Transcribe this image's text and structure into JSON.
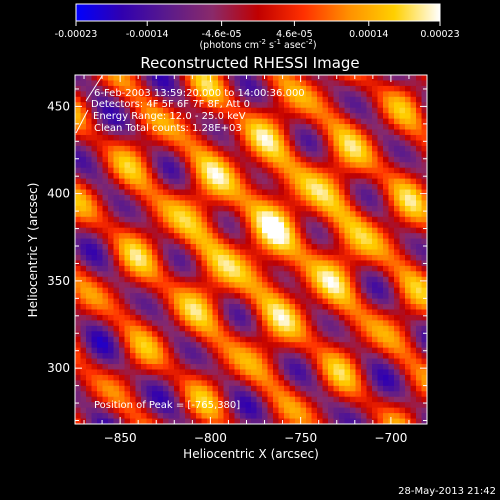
{
  "chart_data": {
    "type": "heatmap",
    "title": "Reconstructed RHESSI Image",
    "xlabel": "Heliocentric X (arcsec)",
    "ylabel": "Heliocentric Y (arcsec)",
    "xlim": [
      -875,
      -680
    ],
    "ylim": [
      268,
      468
    ],
    "xticks": [
      -850,
      -800,
      -750,
      -700
    ],
    "yticks": [
      300,
      350,
      400,
      450
    ],
    "peak": [
      -765,
      380
    ],
    "colorbar": {
      "ticks": [
        -0.00023,
        -0.00014,
        -4.6e-05,
        4.6e-05,
        0.00014,
        0.00023
      ],
      "tick_labels": [
        "-0.00023",
        "-0.00014",
        "-4.6e-05",
        "4.6e-05",
        "0.00014",
        "0.00023"
      ],
      "unit_label_prefix": "(photons cm",
      "unit_label_sup1": "-2",
      "unit_label_mid1": " s",
      "unit_label_sup2": "-1",
      "unit_label_mid2": " asec",
      "unit_label_sup3": "-2",
      "unit_label_suffix": ")",
      "colors": [
        "#0000ff",
        "#3000b0",
        "#5a1a8c",
        "#8a2a6a",
        "#c00000",
        "#ff3000",
        "#ff9000",
        "#ffd000",
        "#ffffff"
      ]
    },
    "annotations": [
      "6-Feb-2003 13:59:20.000 to 14:00:36.000",
      "Detectors: 4F 5F 6F 7F 8F, Att 0",
      "Energy Range: 12.0 - 25.0 keV",
      "Clean    Total counts: 1.28E+03"
    ],
    "peak_label": "Position of Peak = [-765,380]"
  },
  "timestamp": "28-May-2013 21:42"
}
